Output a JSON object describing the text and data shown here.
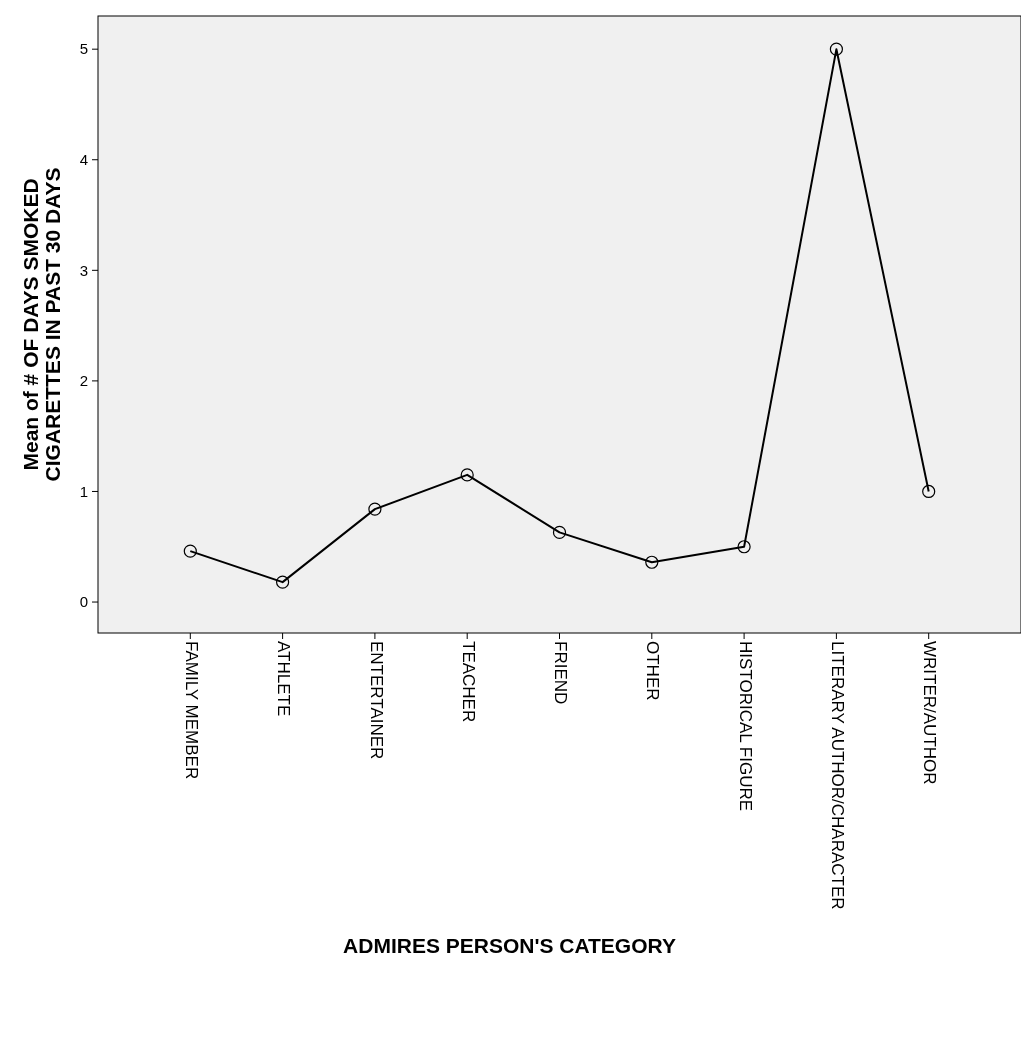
{
  "chart_data": {
    "type": "line",
    "xlabel": "ADMIRES PERSON'S CATEGORY",
    "ylabel": "Mean of # OF DAYS SMOKED CIGARETTES IN PAST 30 DAYS",
    "categories": [
      "FAMILY MEMBER",
      "ATHLETE",
      "ENTERTAINER",
      "TEACHER",
      "FRIEND",
      "OTHER",
      "HISTORICAL FIGURE",
      "LITERARY AUTHOR/CHARACTER",
      "WRITER/AUTHOR"
    ],
    "series": [
      {
        "color": "#000000",
        "values": [
          0.46,
          0.18,
          0.84,
          1.15,
          0.63,
          0.36,
          0.5,
          5,
          1.0
        ]
      }
    ],
    "ylim": [
      -0.28,
      5.3
    ],
    "yticks": [
      0,
      1,
      2,
      3,
      4,
      5
    ],
    "grid": false,
    "marker": "circle",
    "line_style": "solid"
  }
}
